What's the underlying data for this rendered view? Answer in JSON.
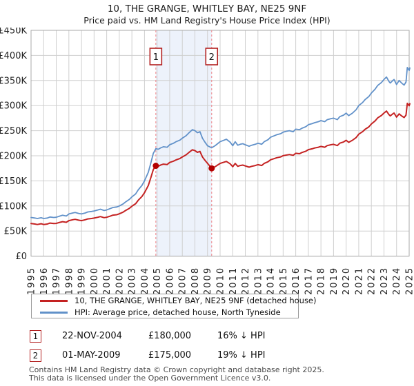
{
  "header": {
    "title": "10, THE GRANGE, WHITLEY BAY, NE25 9NF",
    "subtitle": "Price paid vs. HM Land Registry's House Price Index (HPI)"
  },
  "chart_data": {
    "type": "line",
    "title": "10, THE GRANGE, WHITLEY BAY, NE25 9NF",
    "xlabel": "",
    "ylabel": "",
    "x_axis": {
      "min": 1995,
      "max": 2025,
      "tick_labels": [
        "1995",
        "1996",
        "1997",
        "1998",
        "1999",
        "2000",
        "2001",
        "2002",
        "2003",
        "2004",
        "2005",
        "2006",
        "2007",
        "2008",
        "2009",
        "2010",
        "2011",
        "2012",
        "2013",
        "2014",
        "2015",
        "2016",
        "2017",
        "2018",
        "2019",
        "2020",
        "2021",
        "2022",
        "2023",
        "2024",
        "2025"
      ]
    },
    "y_axis": {
      "min": 0,
      "max": 450000,
      "tick_labels": [
        "£0",
        "£50K",
        "£100K",
        "£150K",
        "£200K",
        "£250K",
        "£300K",
        "£350K",
        "£400K",
        "£450K"
      ]
    },
    "grid": true,
    "shaded_region": {
      "from": 2004.9,
      "to": 2009.33,
      "color": "#edf2fb"
    },
    "marker_line_color": "#ef9398",
    "markers": [
      {
        "label": "1",
        "x": 2004.9,
        "value": 180000
      },
      {
        "label": "2",
        "x": 2009.33,
        "value": 175000
      }
    ],
    "series": [
      {
        "name": "HPI: Average price, detached house, North Tyneside",
        "color": "#6191c9",
        "width": 1.8,
        "points": [
          [
            1995.0,
            77000
          ],
          [
            1995.3,
            76000
          ],
          [
            1995.5,
            75000
          ],
          [
            1995.8,
            76500
          ],
          [
            1996.0,
            75000
          ],
          [
            1996.3,
            76000
          ],
          [
            1996.5,
            78000
          ],
          [
            1996.8,
            77000
          ],
          [
            1997.0,
            77500
          ],
          [
            1997.3,
            80000
          ],
          [
            1997.5,
            81500
          ],
          [
            1997.8,
            80000
          ],
          [
            1998.0,
            84000
          ],
          [
            1998.3,
            86000
          ],
          [
            1998.5,
            87000
          ],
          [
            1998.8,
            85000
          ],
          [
            1999.0,
            84000
          ],
          [
            1999.3,
            86000
          ],
          [
            1999.5,
            88000
          ],
          [
            1999.8,
            89000
          ],
          [
            2000.0,
            90000
          ],
          [
            2000.3,
            92000
          ],
          [
            2000.5,
            93500
          ],
          [
            2000.8,
            91000
          ],
          [
            2001.0,
            92000
          ],
          [
            2001.3,
            95000
          ],
          [
            2001.5,
            97000
          ],
          [
            2001.8,
            98000
          ],
          [
            2002.0,
            100000
          ],
          [
            2002.3,
            104000
          ],
          [
            2002.5,
            108000
          ],
          [
            2002.8,
            113000
          ],
          [
            2003.0,
            118000
          ],
          [
            2003.3,
            124000
          ],
          [
            2003.5,
            132000
          ],
          [
            2003.8,
            141000
          ],
          [
            2004.0,
            150000
          ],
          [
            2004.3,
            167000
          ],
          [
            2004.5,
            185000
          ],
          [
            2004.7,
            205000
          ],
          [
            2004.9,
            214000
          ],
          [
            2005.1,
            213000
          ],
          [
            2005.3,
            216000
          ],
          [
            2005.5,
            218000
          ],
          [
            2005.8,
            217000
          ],
          [
            2006.0,
            222000
          ],
          [
            2006.3,
            225000
          ],
          [
            2006.5,
            228000
          ],
          [
            2006.8,
            231000
          ],
          [
            2007.0,
            235000
          ],
          [
            2007.3,
            240000
          ],
          [
            2007.5,
            245000
          ],
          [
            2007.8,
            252000
          ],
          [
            2008.0,
            250000
          ],
          [
            2008.2,
            246000
          ],
          [
            2008.4,
            248000
          ],
          [
            2008.6,
            235000
          ],
          [
            2008.8,
            227000
          ],
          [
            2009.0,
            220000
          ],
          [
            2009.33,
            216000
          ],
          [
            2009.6,
            220000
          ],
          [
            2009.8,
            224000
          ],
          [
            2010.0,
            228000
          ],
          [
            2010.3,
            231000
          ],
          [
            2010.5,
            233000
          ],
          [
            2010.8,
            227000
          ],
          [
            2011.0,
            220000
          ],
          [
            2011.2,
            228000
          ],
          [
            2011.4,
            221000
          ],
          [
            2011.6,
            223000
          ],
          [
            2011.8,
            224000
          ],
          [
            2012.0,
            222000
          ],
          [
            2012.3,
            219000
          ],
          [
            2012.5,
            221000
          ],
          [
            2012.8,
            223000
          ],
          [
            2013.0,
            225000
          ],
          [
            2013.3,
            223000
          ],
          [
            2013.5,
            228000
          ],
          [
            2013.8,
            232000
          ],
          [
            2014.0,
            237000
          ],
          [
            2014.3,
            240000
          ],
          [
            2014.5,
            242000
          ],
          [
            2014.8,
            244000
          ],
          [
            2015.0,
            247000
          ],
          [
            2015.3,
            249000
          ],
          [
            2015.5,
            250000
          ],
          [
            2015.8,
            248000
          ],
          [
            2016.0,
            253000
          ],
          [
            2016.3,
            252000
          ],
          [
            2016.5,
            255000
          ],
          [
            2016.8,
            258000
          ],
          [
            2017.0,
            262000
          ],
          [
            2017.3,
            264000
          ],
          [
            2017.5,
            266000
          ],
          [
            2017.8,
            268000
          ],
          [
            2018.0,
            270000
          ],
          [
            2018.3,
            268000
          ],
          [
            2018.5,
            272000
          ],
          [
            2018.8,
            274000
          ],
          [
            2019.0,
            275000
          ],
          [
            2019.3,
            272000
          ],
          [
            2019.5,
            278000
          ],
          [
            2019.8,
            281000
          ],
          [
            2020.0,
            285000
          ],
          [
            2020.2,
            280000
          ],
          [
            2020.5,
            285000
          ],
          [
            2020.8,
            292000
          ],
          [
            2021.0,
            300000
          ],
          [
            2021.3,
            306000
          ],
          [
            2021.5,
            312000
          ],
          [
            2021.8,
            318000
          ],
          [
            2022.0,
            325000
          ],
          [
            2022.3,
            333000
          ],
          [
            2022.5,
            340000
          ],
          [
            2022.8,
            346000
          ],
          [
            2023.0,
            352000
          ],
          [
            2023.2,
            357000
          ],
          [
            2023.4,
            348000
          ],
          [
            2023.5,
            345000
          ],
          [
            2023.7,
            350000
          ],
          [
            2023.8,
            352000
          ],
          [
            2024.0,
            342000
          ],
          [
            2024.2,
            350000
          ],
          [
            2024.4,
            345000
          ],
          [
            2024.6,
            341000
          ],
          [
            2024.75,
            347000
          ],
          [
            2024.85,
            376000
          ],
          [
            2025.0,
            370000
          ],
          [
            2025.08,
            375000
          ]
        ]
      },
      {
        "name": "10, THE GRANGE, WHITLEY BAY, NE25 9NF (detached house)",
        "color": "#c42222",
        "width": 2,
        "points": [
          [
            1995.0,
            65000
          ],
          [
            1995.3,
            64000
          ],
          [
            1995.5,
            63000
          ],
          [
            1995.8,
            64500
          ],
          [
            1996.0,
            63000
          ],
          [
            1996.3,
            64000
          ],
          [
            1996.5,
            66000
          ],
          [
            1996.8,
            65000
          ],
          [
            1997.0,
            65300
          ],
          [
            1997.3,
            67500
          ],
          [
            1997.5,
            68700
          ],
          [
            1997.8,
            67400
          ],
          [
            1998.0,
            70800
          ],
          [
            1998.3,
            72500
          ],
          [
            1998.5,
            73300
          ],
          [
            1998.8,
            71600
          ],
          [
            1999.0,
            70800
          ],
          [
            1999.3,
            72500
          ],
          [
            1999.5,
            74200
          ],
          [
            1999.8,
            75000
          ],
          [
            2000.0,
            75800
          ],
          [
            2000.3,
            77500
          ],
          [
            2000.5,
            78800
          ],
          [
            2000.8,
            76700
          ],
          [
            2001.0,
            77500
          ],
          [
            2001.3,
            80000
          ],
          [
            2001.5,
            81700
          ],
          [
            2001.8,
            82600
          ],
          [
            2002.0,
            84300
          ],
          [
            2002.3,
            87600
          ],
          [
            2002.5,
            91000
          ],
          [
            2002.8,
            95200
          ],
          [
            2003.0,
            99400
          ],
          [
            2003.3,
            104500
          ],
          [
            2003.5,
            111200
          ],
          [
            2003.8,
            118800
          ],
          [
            2004.0,
            126400
          ],
          [
            2004.3,
            140700
          ],
          [
            2004.5,
            155900
          ],
          [
            2004.7,
            172700
          ],
          [
            2004.9,
            180000
          ],
          [
            2005.1,
            179200
          ],
          [
            2005.3,
            181700
          ],
          [
            2005.5,
            183400
          ],
          [
            2005.8,
            182500
          ],
          [
            2006.0,
            186700
          ],
          [
            2006.3,
            189300
          ],
          [
            2006.5,
            191800
          ],
          [
            2006.8,
            194300
          ],
          [
            2007.0,
            197700
          ],
          [
            2007.3,
            201900
          ],
          [
            2007.5,
            206100
          ],
          [
            2007.8,
            212000
          ],
          [
            2008.0,
            210300
          ],
          [
            2008.2,
            206900
          ],
          [
            2008.4,
            208600
          ],
          [
            2008.6,
            197700
          ],
          [
            2008.8,
            190900
          ],
          [
            2009.0,
            185000
          ],
          [
            2009.33,
            175000
          ],
          [
            2009.6,
            178200
          ],
          [
            2009.8,
            181500
          ],
          [
            2010.0,
            184700
          ],
          [
            2010.3,
            187200
          ],
          [
            2010.5,
            188800
          ],
          [
            2010.8,
            183900
          ],
          [
            2011.0,
            178200
          ],
          [
            2011.2,
            184700
          ],
          [
            2011.4,
            179000
          ],
          [
            2011.6,
            180700
          ],
          [
            2011.8,
            181500
          ],
          [
            2012.0,
            179800
          ],
          [
            2012.3,
            177400
          ],
          [
            2012.5,
            179000
          ],
          [
            2012.8,
            180700
          ],
          [
            2013.0,
            182300
          ],
          [
            2013.3,
            180700
          ],
          [
            2013.5,
            184700
          ],
          [
            2013.8,
            188000
          ],
          [
            2014.0,
            192000
          ],
          [
            2014.3,
            194400
          ],
          [
            2014.5,
            196100
          ],
          [
            2014.8,
            197700
          ],
          [
            2015.0,
            200100
          ],
          [
            2015.3,
            201700
          ],
          [
            2015.5,
            202500
          ],
          [
            2015.8,
            200900
          ],
          [
            2016.0,
            205000
          ],
          [
            2016.3,
            204100
          ],
          [
            2016.5,
            206600
          ],
          [
            2016.8,
            209000
          ],
          [
            2017.0,
            212200
          ],
          [
            2017.3,
            213900
          ],
          [
            2017.5,
            215500
          ],
          [
            2017.8,
            217100
          ],
          [
            2018.0,
            218700
          ],
          [
            2018.3,
            217100
          ],
          [
            2018.5,
            220300
          ],
          [
            2018.8,
            222000
          ],
          [
            2019.0,
            222800
          ],
          [
            2019.3,
            220300
          ],
          [
            2019.5,
            225200
          ],
          [
            2019.8,
            227600
          ],
          [
            2020.0,
            230900
          ],
          [
            2020.2,
            226800
          ],
          [
            2020.5,
            230900
          ],
          [
            2020.8,
            236500
          ],
          [
            2021.0,
            243000
          ],
          [
            2021.3,
            247900
          ],
          [
            2021.5,
            252700
          ],
          [
            2021.8,
            257600
          ],
          [
            2022.0,
            263300
          ],
          [
            2022.3,
            269700
          ],
          [
            2022.5,
            275400
          ],
          [
            2022.8,
            280300
          ],
          [
            2023.0,
            285100
          ],
          [
            2023.2,
            289200
          ],
          [
            2023.4,
            281900
          ],
          [
            2023.5,
            279500
          ],
          [
            2023.7,
            283500
          ],
          [
            2023.8,
            285100
          ],
          [
            2024.0,
            277000
          ],
          [
            2024.2,
            283500
          ],
          [
            2024.4,
            279500
          ],
          [
            2024.6,
            276200
          ],
          [
            2024.75,
            281100
          ],
          [
            2024.85,
            304600
          ],
          [
            2025.0,
            299700
          ],
          [
            2025.08,
            303800
          ]
        ]
      }
    ],
    "legend_position": "below"
  },
  "legend": {
    "items": [
      {
        "label": "10, THE GRANGE, WHITLEY BAY, NE25 9NF (detached house)",
        "color": "#c42222"
      },
      {
        "label": "HPI: Average price, detached house, North Tyneside",
        "color": "#6191c9"
      }
    ]
  },
  "transactions": [
    {
      "num": "1",
      "date": "22-NOV-2004",
      "price": "£180,000",
      "hpi": "16% ↓ HPI"
    },
    {
      "num": "2",
      "date": "01-MAY-2009",
      "price": "£175,000",
      "hpi": "19% ↓ HPI"
    }
  ],
  "footer": {
    "line1": "Contains HM Land Registry data © Crown copyright and database right 2025.",
    "line2": "This data is licensed under the Open Government Licence v3.0."
  }
}
